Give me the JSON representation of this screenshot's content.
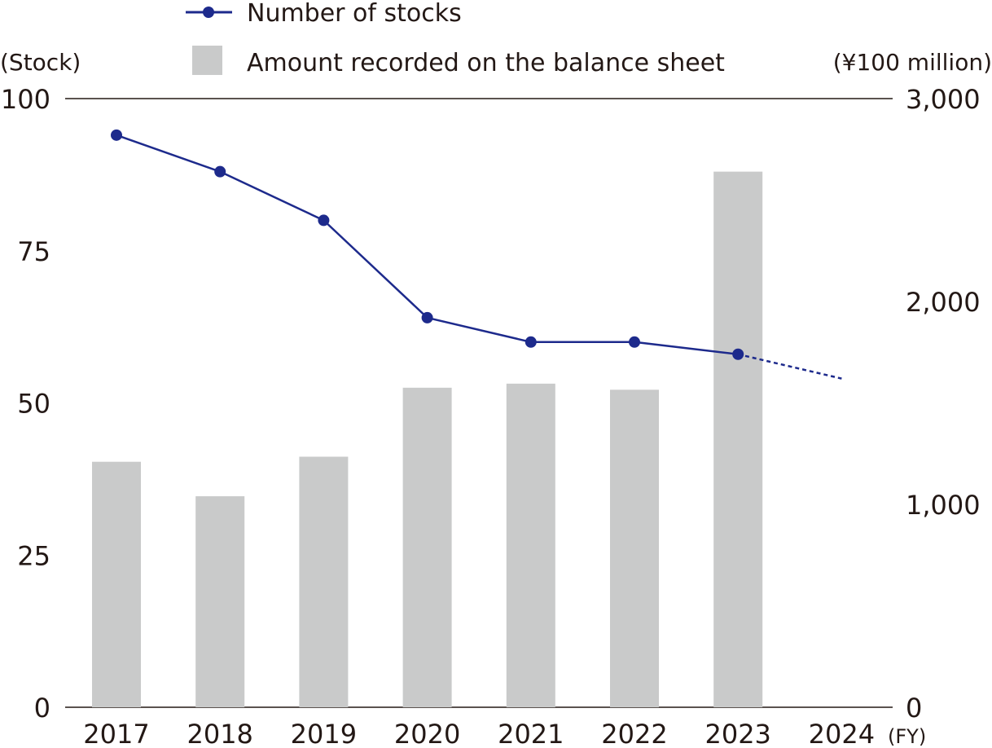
{
  "chart_data": {
    "type": "bar",
    "categories": [
      "2017",
      "2018",
      "2019",
      "2020",
      "2021",
      "2022",
      "2023",
      "2024"
    ],
    "x_unit": "(FY)",
    "left_axis": {
      "unit": "(Stock)",
      "ticks": [
        "0",
        "25",
        "50",
        "75",
        "100"
      ],
      "range": [
        0,
        100
      ]
    },
    "right_axis": {
      "unit": "(¥100 million)",
      "ticks": [
        "0",
        "1,000",
        "2,000",
        "3,000"
      ],
      "range": [
        0,
        3000
      ]
    },
    "series": [
      {
        "name": "Amount recorded on the balance sheet",
        "type": "bar",
        "axis": "right",
        "color": "#c9caca",
        "values": [
          1210,
          1040,
          1235,
          1575,
          1595,
          1565,
          2640,
          null
        ]
      },
      {
        "name": "Number of stocks",
        "type": "line",
        "axis": "left",
        "color": "#1d2a8c",
        "values": [
          94,
          88,
          80,
          64,
          60,
          60,
          58,
          null
        ],
        "projection": {
          "from": "2023",
          "to": "2024",
          "value": 54,
          "style": "dashed"
        }
      }
    ],
    "legend": {
      "placement": "top",
      "items": [
        {
          "label": "Number of stocks",
          "marker": "line-dot"
        },
        {
          "label": "Amount recorded on the balance sheet",
          "marker": "square"
        }
      ]
    },
    "grid": false
  }
}
